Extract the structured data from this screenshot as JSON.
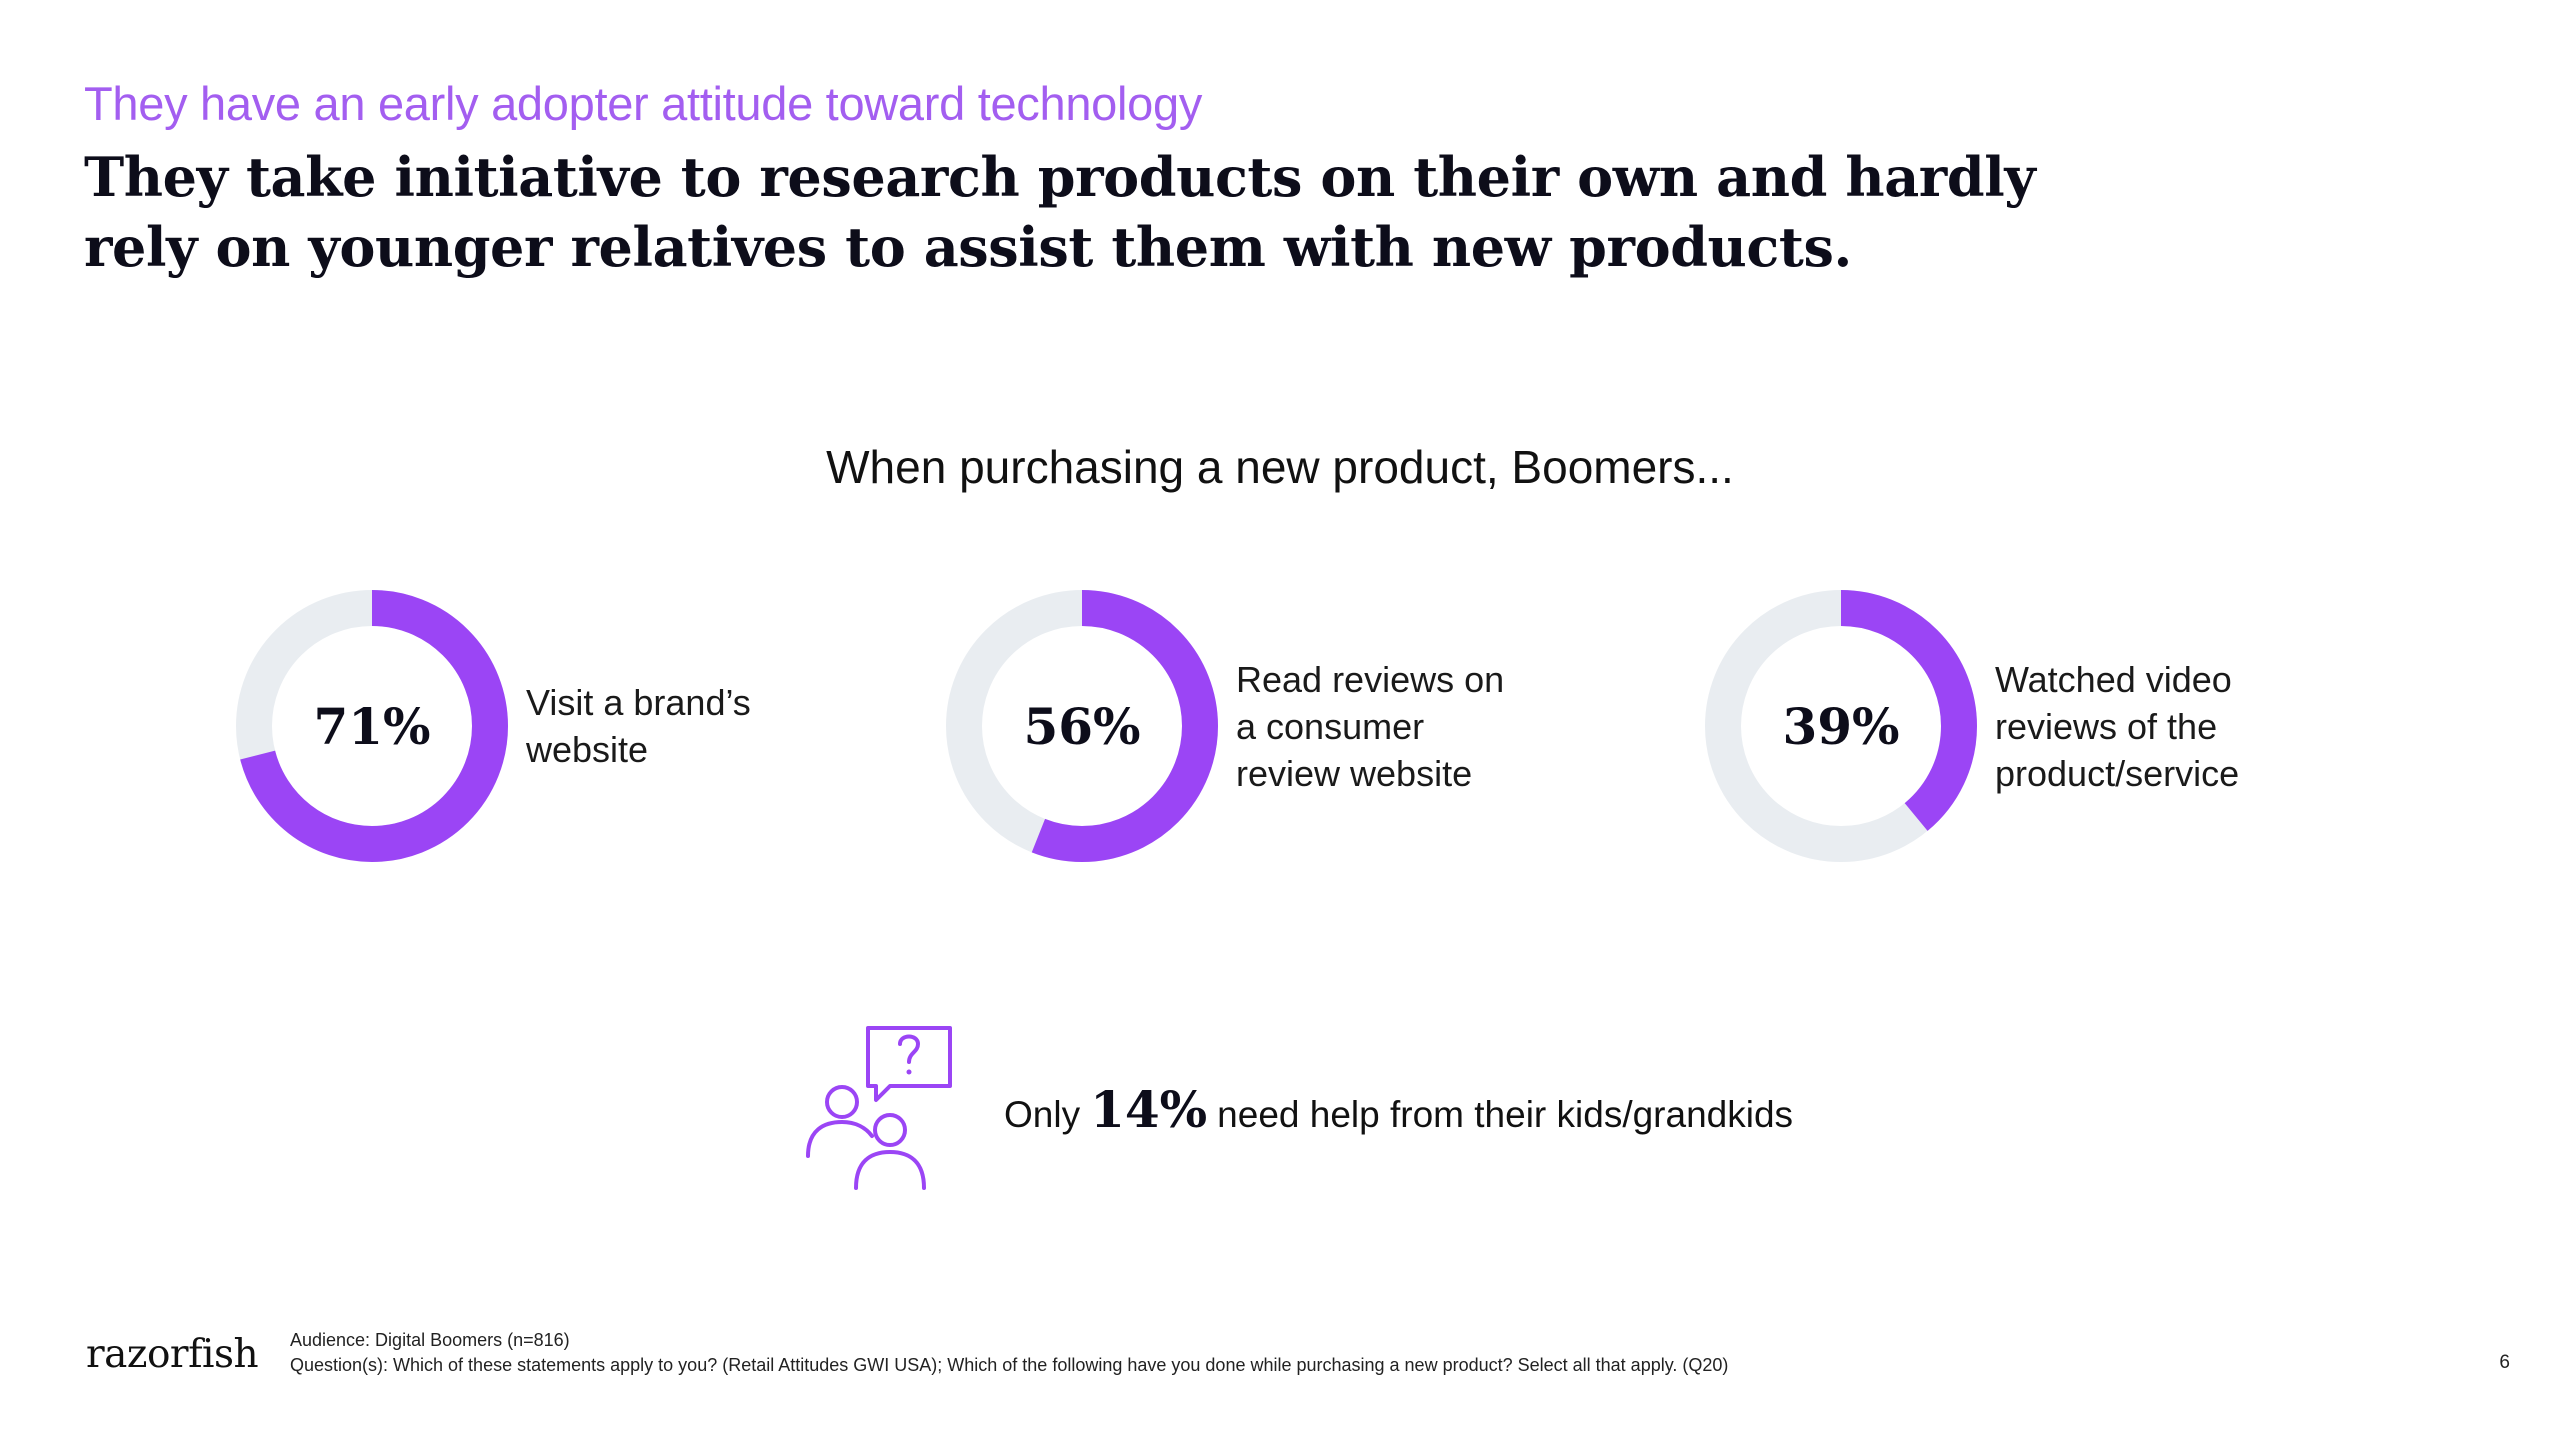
{
  "slide": {
    "eyebrow": "They have an early adopter attitude toward technology",
    "headline": "They take initiative to research products on their own and hardly rely on younger relatives to assist them with new products.",
    "page_number": "6"
  },
  "colors": {
    "accent": "#9b45f5",
    "track": "#e9edf1",
    "eyebrow": "#a35ef0"
  },
  "chart_data": {
    "type": "pie",
    "variant": "donut",
    "title": "When purchasing a new product, Boomers...",
    "items": [
      {
        "value": 71,
        "display": "71%",
        "label": "Visit a brand’s website"
      },
      {
        "value": 56,
        "display": "56%",
        "label": "Read reviews on a consumer review website"
      },
      {
        "value": 39,
        "display": "39%",
        "label": "Watched video reviews of the product/service"
      }
    ]
  },
  "help": {
    "icon": "people-question-icon",
    "prefix": "Only",
    "value": "14%",
    "suffix": "need help from their kids/grandkids"
  },
  "footer": {
    "logo": "razorfish",
    "audience": "Audience: Digital Boomers (n=816)",
    "questions": "Question(s): Which of these statements apply to you? (Retail Attitudes GWI USA); Which of the following have you done while purchasing a new product? Select all that apply. (Q20)"
  }
}
